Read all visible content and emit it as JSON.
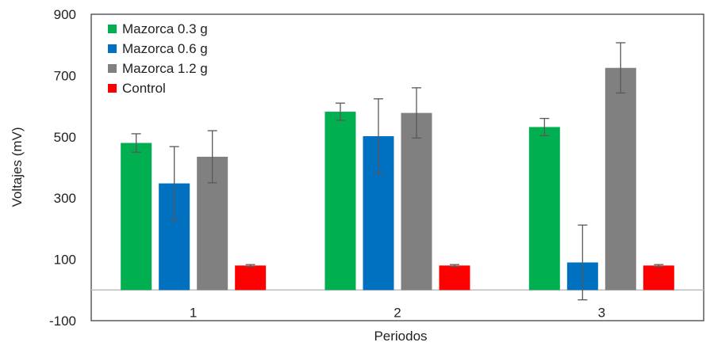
{
  "chart_data": {
    "type": "bar",
    "categories": [
      "1",
      "2",
      "3"
    ],
    "series": [
      {
        "name": "Mazorca 0.3 g",
        "color": "#00b050",
        "values": [
          480,
          582,
          532
        ],
        "errors": [
          30,
          28,
          28
        ]
      },
      {
        "name": "Mazorca 0.6 g",
        "color": "#0070c0",
        "values": [
          348,
          502,
          90
        ],
        "errors": [
          120,
          122,
          122
        ]
      },
      {
        "name": "Mazorca 1.2 g",
        "color": "#808080",
        "values": [
          435,
          578,
          725
        ],
        "errors": [
          85,
          82,
          82
        ]
      },
      {
        "name": "Control",
        "color": "#ff0000",
        "values": [
          80,
          80,
          80
        ],
        "errors": [
          3,
          3,
          3
        ]
      }
    ],
    "xlabel": "Periodos",
    "ylabel": "Voltajes (mV)",
    "ylim": [
      -100,
      900
    ],
    "yticks": [
      -100,
      100,
      300,
      500,
      700,
      900
    ],
    "legend": "top-left",
    "grid": false
  }
}
